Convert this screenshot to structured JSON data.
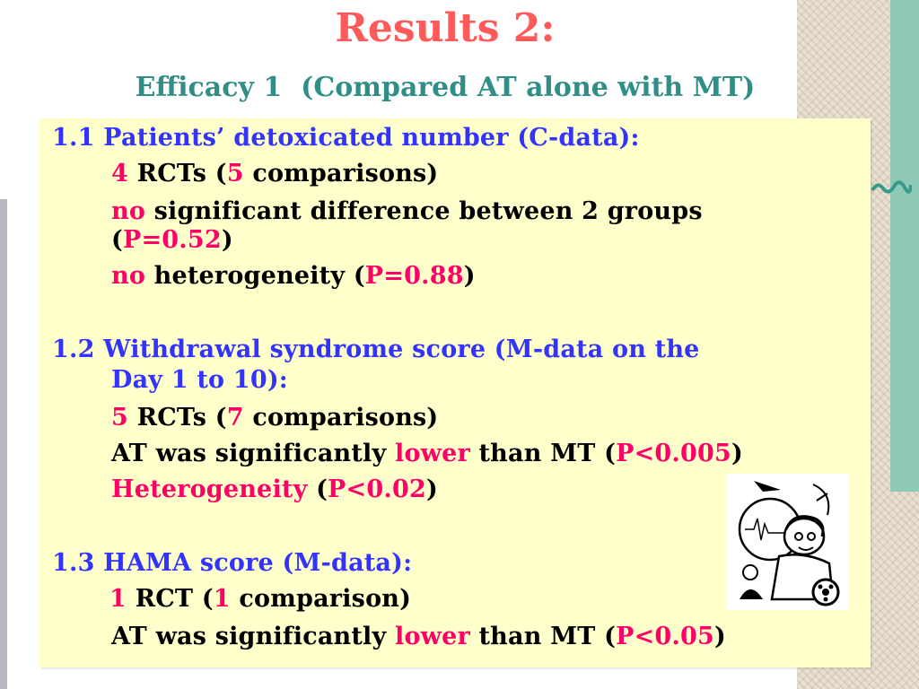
{
  "header": {
    "title": "Results 2:",
    "subtitle": "Efficacy 1  (Compared AT alone with MT)"
  },
  "sections": [
    {
      "heading": "1.1 Patients’ detoxicated number (C-data):",
      "rcts": {
        "count": "4",
        "label_mid": " RCTs (",
        "comparisons": "5",
        "label_end": " comparisons)"
      },
      "line2": {
        "emph": "no",
        "text": " significant difference between 2 groups",
        "open": "(",
        "p": "P=0.52",
        "close": ")"
      },
      "line3": {
        "emph": "no",
        "text": " heterogeneity (",
        "p": "P=0.88",
        "close": ")"
      }
    },
    {
      "heading_line1": "1.2 Withdrawal syndrome score (M-data on the",
      "heading_line2": "Day 1 to 10):",
      "rcts": {
        "count": "5",
        "label_mid": " RCTs (",
        "comparisons": "7",
        "label_end": " comparisons)"
      },
      "line2": {
        "pre": "AT was significantly ",
        "emph": "lower",
        "mid": " than MT (",
        "p": "P<0.005",
        "close": ")"
      },
      "line3": {
        "emph": "Heterogeneity",
        "mid": " (",
        "p": "P<0.02",
        "close": ")"
      }
    },
    {
      "heading": "1.3 HAMA score (M-data):",
      "rcts": {
        "count": "1",
        "label_mid": " RCT (",
        "comparisons": "1",
        "label_end": " comparison)"
      },
      "line2": {
        "pre": "AT was significantly ",
        "emph": "lower",
        "mid": " than MT (",
        "p": "P<0.05",
        "close": ")"
      }
    }
  ],
  "colors": {
    "title": "#ff5a5a",
    "subtitle": "#2f8f86",
    "heading": "#3333ff",
    "emphasis": "#ff0066",
    "panel": "#ffffcc"
  },
  "icons": [
    "scientist-clipart-icon"
  ]
}
